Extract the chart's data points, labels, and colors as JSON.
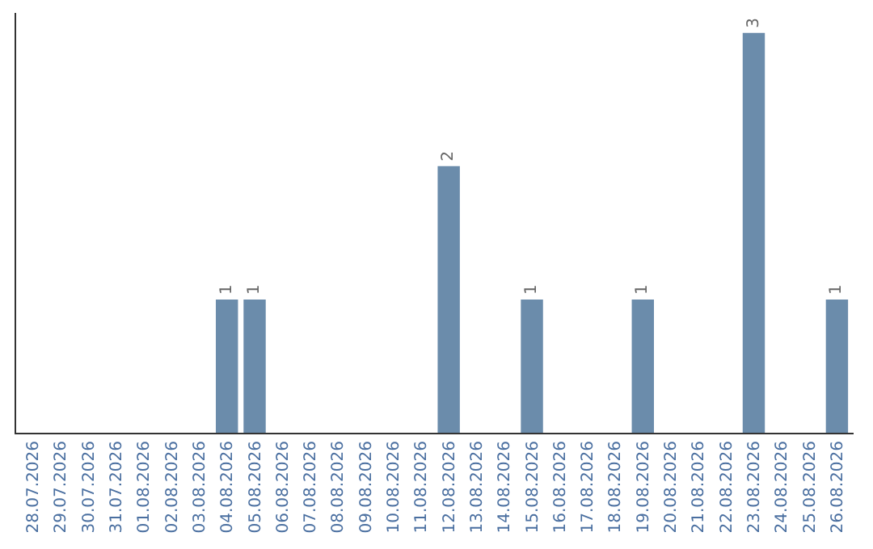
{
  "chart_data": {
    "type": "bar",
    "categories": [
      "28.07.2026",
      "29.07.2026",
      "30.07.2026",
      "31.07.2026",
      "01.08.2026",
      "02.08.2026",
      "03.08.2026",
      "04.08.2026",
      "05.08.2026",
      "06.08.2026",
      "07.08.2026",
      "08.08.2026",
      "09.08.2026",
      "10.08.2026",
      "11.08.2026",
      "12.08.2026",
      "13.08.2026",
      "14.08.2026",
      "15.08.2026",
      "16.08.2026",
      "17.08.2026",
      "18.08.2026",
      "19.08.2026",
      "20.08.2026",
      "21.08.2026",
      "22.08.2026",
      "23.08.2026",
      "24.08.2026",
      "25.08.2026",
      "26.08.2026"
    ],
    "values": [
      0,
      0,
      0,
      0,
      0,
      0,
      0,
      1,
      1,
      0,
      0,
      0,
      0,
      0,
      0,
      2,
      0,
      0,
      1,
      0,
      0,
      0,
      1,
      0,
      0,
      0,
      3,
      0,
      0,
      1
    ],
    "value_labels": [
      null,
      null,
      null,
      null,
      null,
      null,
      null,
      "1",
      "1",
      null,
      null,
      null,
      null,
      null,
      null,
      "2",
      null,
      null,
      "1",
      null,
      null,
      null,
      "1",
      null,
      null,
      null,
      "3",
      null,
      null,
      "1"
    ],
    "color": "#6b8cab",
    "ylim": [
      0,
      3.15
    ],
    "tick_labels": "x",
    "grid": false,
    "legend": false
  }
}
